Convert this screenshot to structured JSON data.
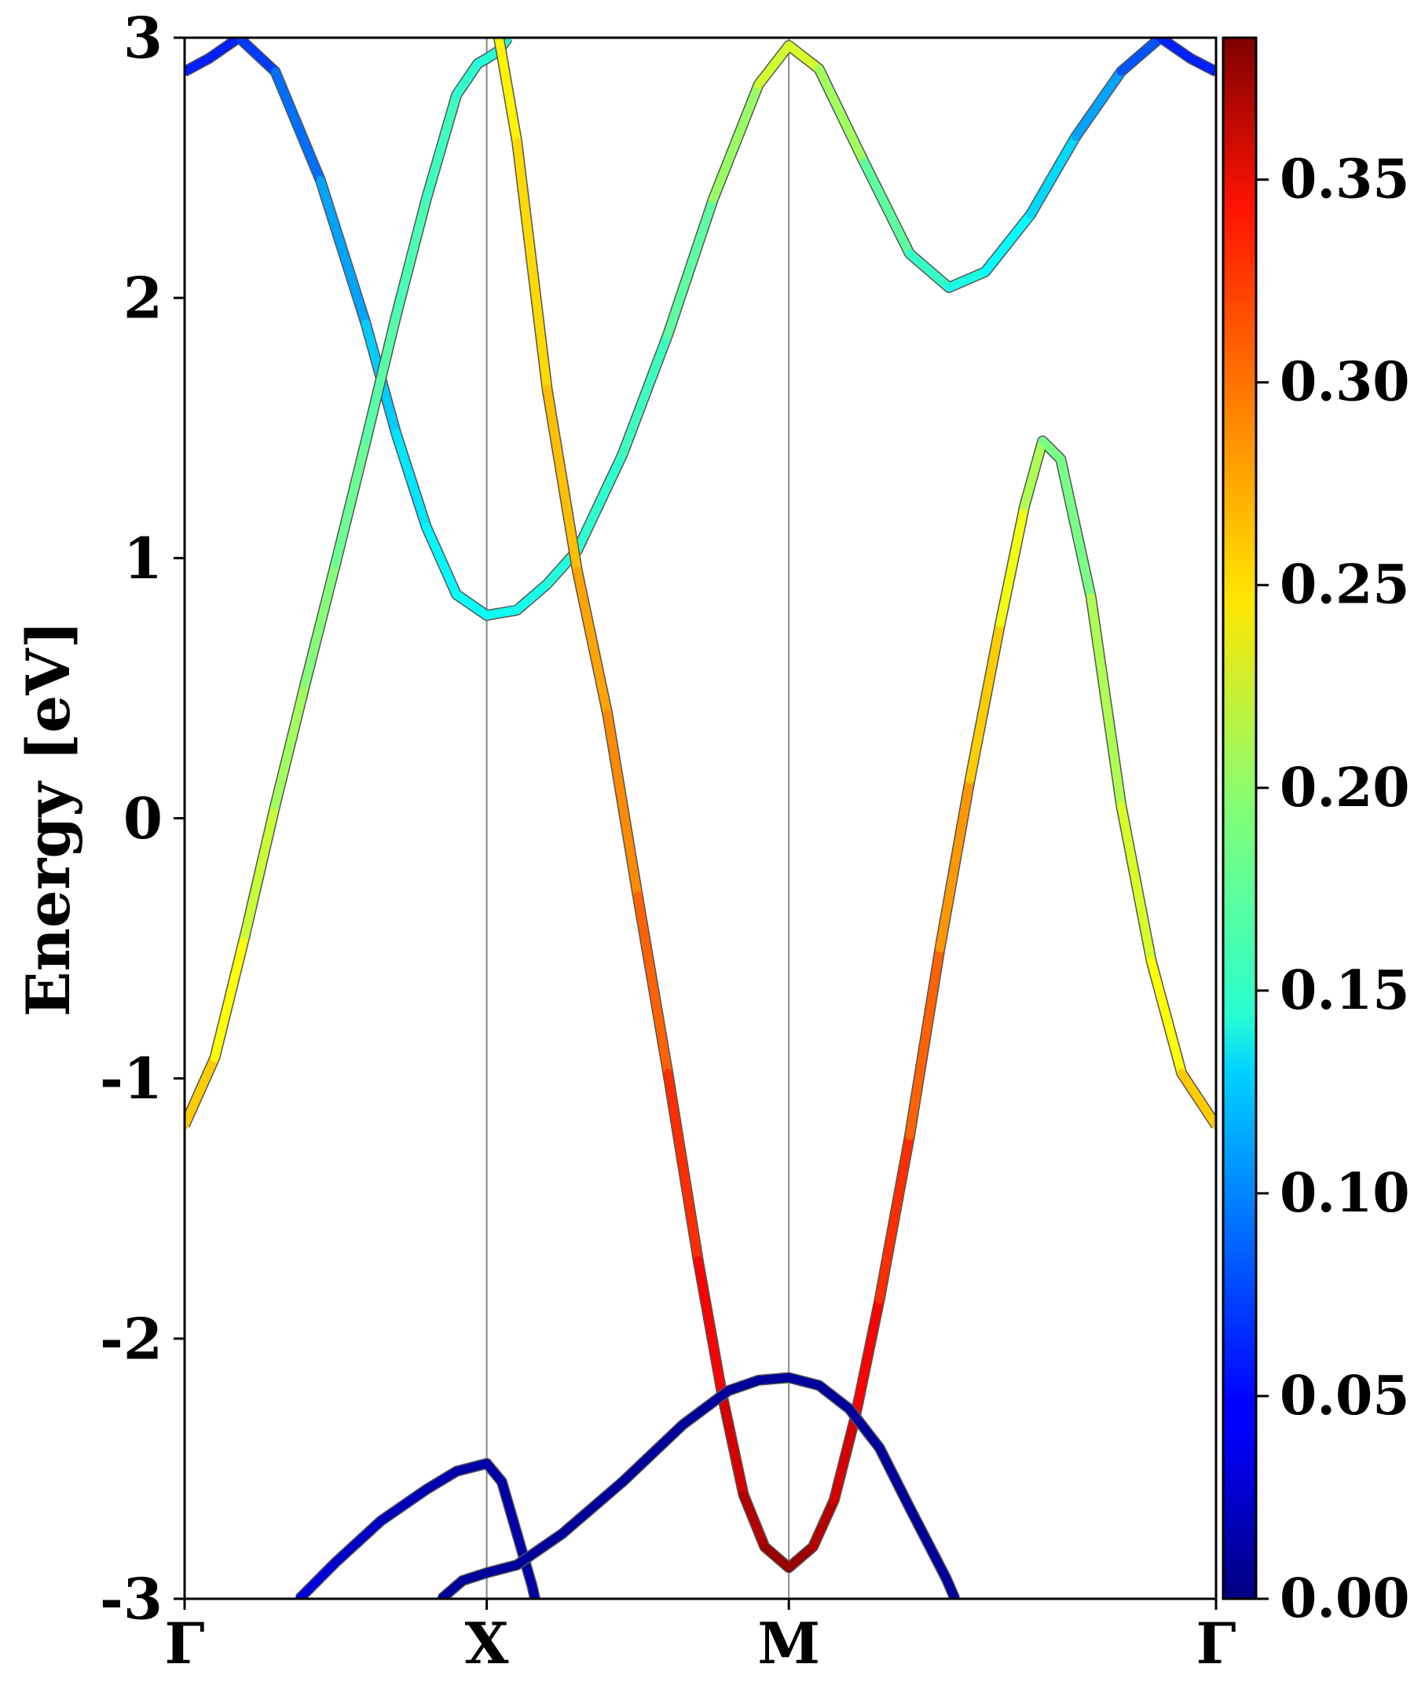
{
  "chart_data": {
    "type": "line",
    "title": "",
    "xlabel": "",
    "ylabel": "Energy [eV]",
    "ylim": [
      -3,
      3
    ],
    "x_ticks": [
      {
        "label": "Γ",
        "x": 0
      },
      {
        "label": "X",
        "x": 1
      },
      {
        "label": "M",
        "x": 2
      },
      {
        "label": "Γ",
        "x": 3.414
      }
    ],
    "y_ticks": [
      {
        "label": "-3",
        "value": -3
      },
      {
        "label": "-2",
        "value": -2
      },
      {
        "label": "-1",
        "value": -1
      },
      {
        "label": "0",
        "value": 0
      },
      {
        "label": "1",
        "value": 1
      },
      {
        "label": "2",
        "value": 2
      },
      {
        "label": "3",
        "value": 3
      }
    ],
    "grid": false,
    "colorbar": {
      "range": [
        0.0,
        0.385
      ],
      "colormap": "jet",
      "ticks": [
        "0.00",
        "0.05",
        "0.10",
        "0.15",
        "0.20",
        "0.25",
        "0.30",
        "0.35"
      ],
      "tick_values": [
        0.0,
        0.05,
        0.1,
        0.15,
        0.2,
        0.25,
        0.3,
        0.35
      ]
    },
    "bands": [
      {
        "points": [
          [
            0,
            2.87,
            0.06
          ],
          [
            0.08,
            2.92,
            0.06
          ],
          [
            0.18,
            3.0,
            0.06
          ],
          [
            0.3,
            2.87,
            0.08
          ],
          [
            0.45,
            2.45,
            0.1
          ],
          [
            0.6,
            1.9,
            0.12
          ],
          [
            0.7,
            1.48,
            0.13
          ],
          [
            0.8,
            1.12,
            0.14
          ],
          [
            0.9,
            0.86,
            0.145
          ],
          [
            1.0,
            0.78,
            0.15
          ],
          [
            1.1,
            0.8,
            0.15
          ],
          [
            1.2,
            0.9,
            0.155
          ],
          [
            1.3,
            1.03,
            0.16
          ],
          [
            1.45,
            1.4,
            0.165
          ],
          [
            1.6,
            1.86,
            0.17
          ],
          [
            1.75,
            2.38,
            0.19
          ],
          [
            1.9,
            2.82,
            0.215
          ],
          [
            2.0,
            2.97,
            0.23
          ],
          [
            2.1,
            2.88,
            0.22
          ],
          [
            2.25,
            2.52,
            0.19
          ],
          [
            2.4,
            2.17,
            0.17
          ],
          [
            2.53,
            2.04,
            0.16
          ],
          [
            2.65,
            2.1,
            0.15
          ],
          [
            2.8,
            2.32,
            0.14
          ],
          [
            2.95,
            2.62,
            0.12
          ],
          [
            3.1,
            2.87,
            0.1
          ],
          [
            3.23,
            3.0,
            0.06
          ],
          [
            3.33,
            2.92,
            0.06
          ],
          [
            3.414,
            2.87,
            0.06
          ]
        ]
      },
      {
        "points": [
          [
            0,
            -1.18,
            0.27
          ],
          [
            0.1,
            -0.92,
            0.25
          ],
          [
            0.2,
            -0.45,
            0.23
          ],
          [
            0.3,
            0.05,
            0.21
          ],
          [
            0.4,
            0.52,
            0.2
          ],
          [
            0.5,
            0.98,
            0.19
          ],
          [
            0.6,
            1.45,
            0.18
          ],
          [
            0.7,
            1.93,
            0.175
          ],
          [
            0.8,
            2.38,
            0.17
          ],
          [
            0.9,
            2.78,
            0.165
          ],
          [
            0.97,
            2.9,
            0.16
          ],
          [
            1.0,
            2.92,
            0.16
          ],
          [
            1.04,
            2.95,
            0.16
          ],
          [
            1.07,
            3.0,
            0.16
          ]
        ]
      },
      {
        "points": [
          [
            1.04,
            3.0,
            0.24
          ],
          [
            1.1,
            2.6,
            0.25
          ],
          [
            1.2,
            1.65,
            0.26
          ],
          [
            1.3,
            0.95,
            0.27
          ],
          [
            1.4,
            0.4,
            0.28
          ],
          [
            1.5,
            -0.3,
            0.29
          ],
          [
            1.6,
            -0.98,
            0.31
          ],
          [
            1.7,
            -1.7,
            0.33
          ],
          [
            1.78,
            -2.22,
            0.345
          ],
          [
            1.85,
            -2.6,
            0.36
          ],
          [
            1.92,
            -2.8,
            0.37
          ],
          [
            2.0,
            -2.88,
            0.38
          ],
          [
            2.08,
            -2.8,
            0.37
          ],
          [
            2.15,
            -2.62,
            0.36
          ],
          [
            2.22,
            -2.3,
            0.345
          ],
          [
            2.3,
            -1.85,
            0.33
          ],
          [
            2.4,
            -1.22,
            0.31
          ],
          [
            2.5,
            -0.5,
            0.29
          ],
          [
            2.6,
            0.15,
            0.27
          ],
          [
            2.7,
            0.75,
            0.25
          ],
          [
            2.78,
            1.2,
            0.22
          ],
          [
            2.84,
            1.45,
            0.2
          ],
          [
            2.9,
            1.38,
            0.18
          ],
          [
            3.0,
            0.85,
            0.2
          ],
          [
            3.1,
            0.05,
            0.22
          ],
          [
            3.2,
            -0.55,
            0.23
          ],
          [
            3.3,
            -0.98,
            0.25
          ],
          [
            3.414,
            -1.18,
            0.27
          ]
        ]
      },
      {
        "points": [
          [
            0.38,
            -3.0,
            0.04
          ],
          [
            0.5,
            -2.86,
            0.03
          ],
          [
            0.65,
            -2.7,
            0.025
          ],
          [
            0.8,
            -2.58,
            0.02
          ],
          [
            0.9,
            -2.51,
            0.015
          ],
          [
            1.0,
            -2.48,
            0.015
          ],
          [
            1.05,
            -2.55,
            0.015
          ],
          [
            1.1,
            -2.75,
            0.015
          ],
          [
            1.15,
            -2.95,
            0.015
          ],
          [
            1.16,
            -3.0,
            0.015
          ]
        ]
      },
      {
        "points": [
          [
            0.85,
            -3.0,
            0.01
          ],
          [
            0.92,
            -2.93,
            0.01
          ],
          [
            1.0,
            -2.9,
            0.01
          ],
          [
            1.1,
            -2.87,
            0.01
          ],
          [
            1.25,
            -2.75,
            0.01
          ],
          [
            1.45,
            -2.55,
            0.01
          ],
          [
            1.65,
            -2.33,
            0.01
          ],
          [
            1.8,
            -2.2,
            0.01
          ],
          [
            1.9,
            -2.16,
            0.01
          ],
          [
            2.0,
            -2.15,
            0.01
          ],
          [
            2.1,
            -2.18,
            0.01
          ],
          [
            2.2,
            -2.27,
            0.01
          ],
          [
            2.3,
            -2.42,
            0.01
          ],
          [
            2.4,
            -2.65,
            0.01
          ],
          [
            2.52,
            -2.92,
            0.01
          ],
          [
            2.55,
            -3.0,
            0.01
          ]
        ]
      }
    ]
  }
}
